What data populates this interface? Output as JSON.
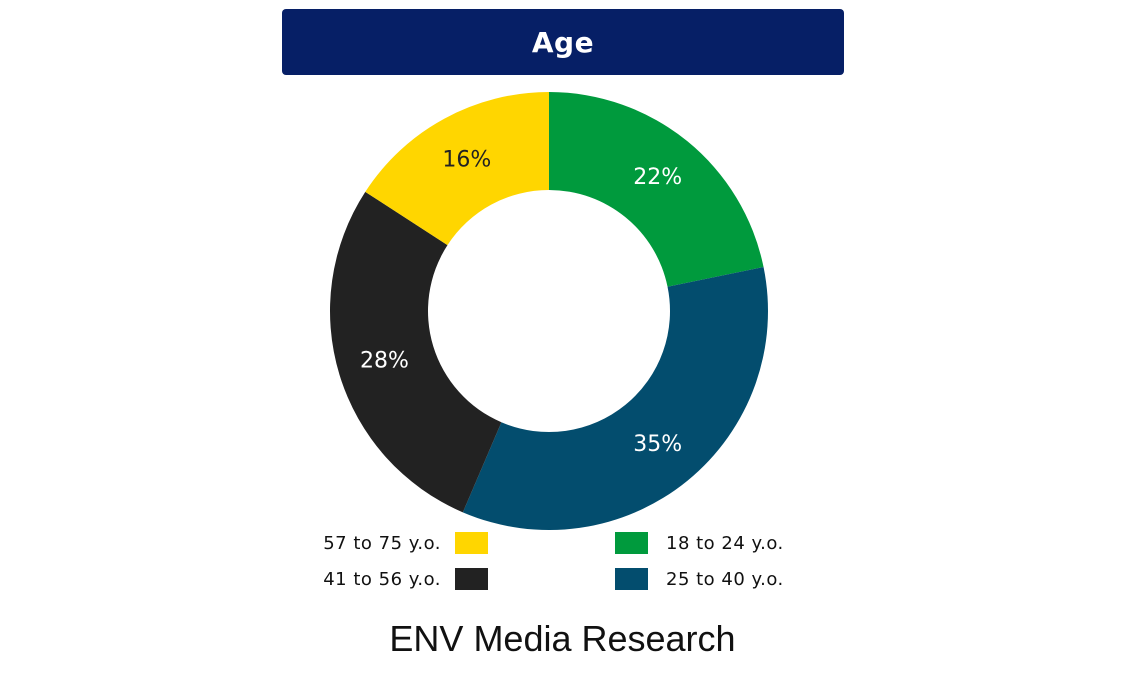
{
  "header": {
    "title": "Age"
  },
  "footer": {
    "text": "ENV Media Research"
  },
  "colors": {
    "title_bar": "#061f66",
    "yellow": "#ffd600",
    "green": "#009a3d",
    "navy": "#034d6e",
    "black": "#222222"
  },
  "chart_data": {
    "type": "pie",
    "variant": "donut",
    "title": "Age",
    "slices": [
      {
        "label": "18 to 24 y.o.",
        "value": 22,
        "display": "22%",
        "color": "#009a3d",
        "label_color": "#ffffff"
      },
      {
        "label": "25 to 40 y.o.",
        "value": 35,
        "display": "35%",
        "color": "#034d6e",
        "label_color": "#ffffff"
      },
      {
        "label": "41 to 56 y.o.",
        "value": 28,
        "display": "28%",
        "color": "#222222",
        "label_color": "#ffffff"
      },
      {
        "label": "57 to 75 y.o.",
        "value": 16,
        "display": "16%",
        "color": "#ffd600",
        "label_color": "#222222"
      }
    ],
    "start": "top",
    "direction": "clockwise",
    "legend_position": "bottom"
  },
  "legend": {
    "left": [
      {
        "label": "57 to 75 y.o.",
        "color": "#ffd600"
      },
      {
        "label": "41 to 56 y.o.",
        "color": "#222222"
      }
    ],
    "right": [
      {
        "label": "18 to 24 y.o.",
        "color": "#009a3d"
      },
      {
        "label": "25 to 40 y.o.",
        "color": "#034d6e"
      }
    ]
  }
}
